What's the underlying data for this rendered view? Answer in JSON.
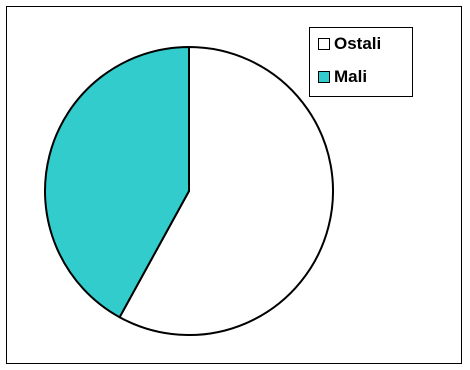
{
  "chart_data": {
    "type": "pie",
    "title": "",
    "series": [
      {
        "name": "Ostali",
        "value": 58,
        "color": "#ffffff"
      },
      {
        "name": "Mali",
        "value": 42,
        "color": "#33cccc"
      }
    ],
    "start_angle_deg": 0,
    "direction": "clockwise",
    "legend": "top-right"
  }
}
